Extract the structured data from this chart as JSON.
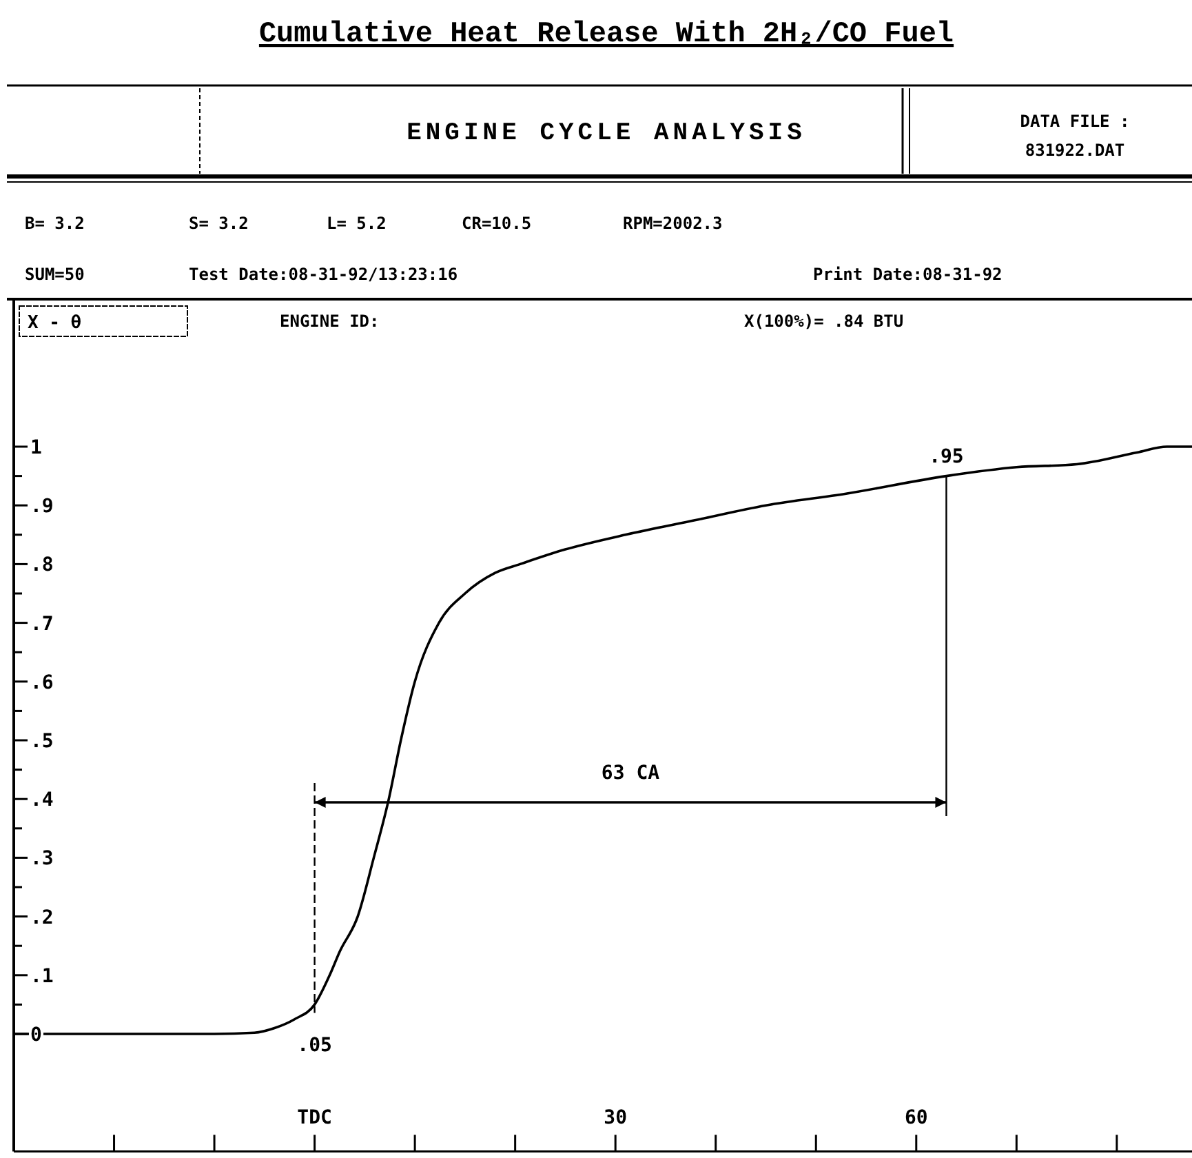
{
  "chart_data": {
    "type": "line",
    "title": "Cumulative Heat Release With 2H₂/CO Fuel",
    "ylabel": "X - θ",
    "x": [
      -30,
      -10,
      -6,
      -4,
      -2,
      0,
      1.5,
      2.5,
      4.3,
      5.9,
      7.4,
      8.6,
      10,
      12.4,
      15,
      18,
      20.5,
      25,
      31,
      38,
      45,
      53,
      63,
      70,
      76,
      82,
      85,
      87.5
    ],
    "series": [
      {
        "color": "#000000",
        "values": [
          0,
          0,
          0.002,
          0.01,
          0.025,
          0.05,
          0.1,
          0.14,
          0.2,
          0.3,
          0.4,
          0.5,
          0.6,
          0.7,
          0.75,
          0.785,
          0.8,
          0.825,
          0.85,
          0.875,
          0.9,
          0.92,
          0.95,
          0.965,
          0.97,
          0.99,
          1.0,
          1.0
        ]
      }
    ],
    "xlim": [
      -30,
      87.5
    ],
    "xticks": [
      {
        "value": -20,
        "label": null
      },
      {
        "value": -10,
        "label": null
      },
      {
        "value": 0,
        "label": "TDC"
      },
      {
        "value": 10,
        "label": null
      },
      {
        "value": 20,
        "label": null
      },
      {
        "value": 30,
        "label": "30"
      },
      {
        "value": 40,
        "label": null
      },
      {
        "value": 50,
        "label": null
      },
      {
        "value": 60,
        "label": "60"
      },
      {
        "value": 70,
        "label": null
      },
      {
        "value": 80,
        "label": null
      }
    ],
    "ylim": [
      -0.2,
      1.25
    ],
    "yticks": [
      {
        "value": 0,
        "label": "0"
      },
      {
        "value": 0.05,
        "label": null
      },
      {
        "value": 0.1,
        "label": ".1"
      },
      {
        "value": 0.15,
        "label": null
      },
      {
        "value": 0.2,
        "label": ".2"
      },
      {
        "value": 0.25,
        "label": null
      },
      {
        "value": 0.3,
        "label": ".3"
      },
      {
        "value": 0.35,
        "label": null
      },
      {
        "value": 0.4,
        "label": ".4"
      },
      {
        "value": 0.45,
        "label": null
      },
      {
        "value": 0.5,
        "label": ".5"
      },
      {
        "value": 0.55,
        "label": null
      },
      {
        "value": 0.6,
        "label": ".6"
      },
      {
        "value": 0.65,
        "label": null
      },
      {
        "value": 0.7,
        "label": ".7"
      },
      {
        "value": 0.75,
        "label": null
      },
      {
        "value": 0.8,
        "label": ".8"
      },
      {
        "value": 0.85,
        "label": null
      },
      {
        "value": 0.9,
        "label": ".9"
      },
      {
        "value": 0.95,
        "label": null
      },
      {
        "value": 1,
        "label": "1"
      }
    ],
    "grid": false,
    "marker": "none",
    "line_style": "solid",
    "annotations": [
      "ENGINE CYCLE ANALYSIS",
      "DATA FILE :",
      "831922.DAT",
      "B= 3.2",
      "S= 3.2",
      "L= 5.2",
      "CR=10.5",
      "RPM=2002.3",
      "SUM=50",
      "Test Date:08-31-92/13:23:16",
      "Print Date:08-31-92",
      "ENGINE ID:",
      "X(100%)= .84 BTU",
      {
        "text": ".05",
        "x": 0,
        "y": 0.05
      },
      {
        "text": ".95",
        "x": 63,
        "y": 0.95
      },
      "63 CA"
    ]
  }
}
